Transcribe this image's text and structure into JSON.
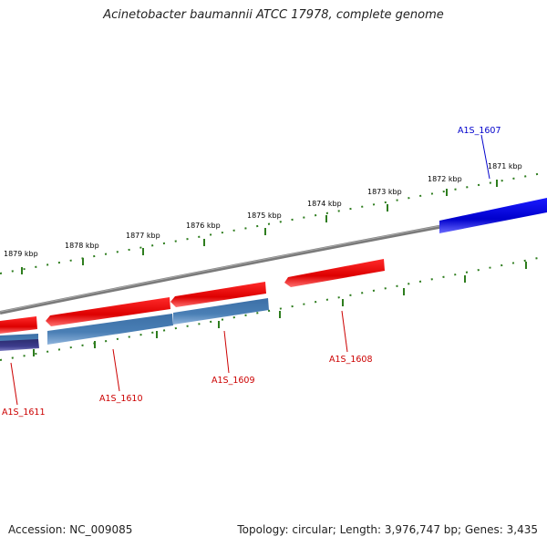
{
  "title": "Acinetobacter baumannii ATCC 17978, complete genome",
  "footer": {
    "accession": "Accession: NC_009085",
    "topology": "Topology: circular; Length: 3,976,747 bp; Genes: 3,435"
  },
  "colors": {
    "backbone": "#7a7a7a",
    "ticks": "#2e7d1e",
    "forward_cds": "#ee1111",
    "forward_other": "#0000dd",
    "reverse_cds": "#4a7fb5",
    "reverse_other": "#3c3c8c"
  },
  "scale_labels": [
    "1871 kbp",
    "1872 kbp",
    "1873 kbp",
    "1874 kbp",
    "1875 kbp",
    "1876 kbp",
    "1877 kbp",
    "1878 kbp",
    "1879 kbp"
  ],
  "gene_labels": [
    {
      "name": "A1S_1607",
      "color": "#0000cc"
    },
    {
      "name": "A1S_1608",
      "color": "#cc0000"
    },
    {
      "name": "A1S_1609",
      "color": "#cc0000"
    },
    {
      "name": "A1S_1610",
      "color": "#cc0000"
    },
    {
      "name": "A1S_1611",
      "color": "#cc0000"
    }
  ]
}
